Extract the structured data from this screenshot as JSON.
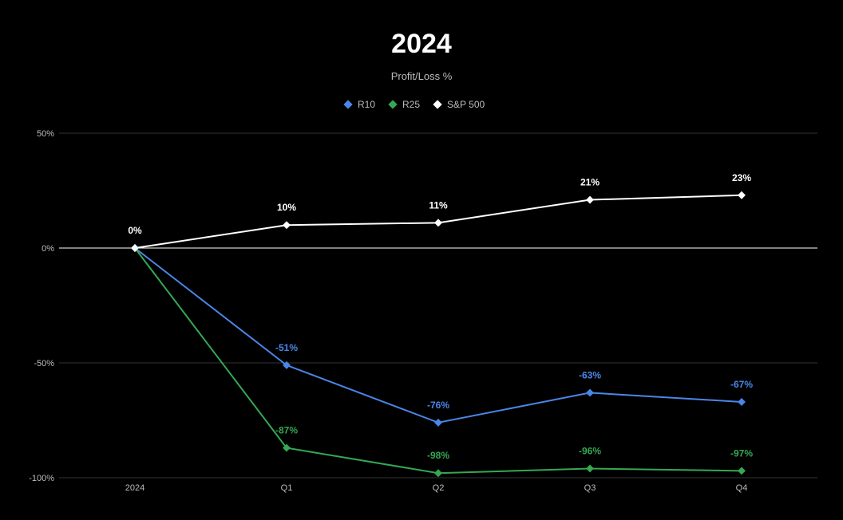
{
  "chart_data": {
    "type": "line",
    "title": "2024",
    "subtitle": "Profit/Loss %",
    "categories": [
      "2024",
      "Q1",
      "Q2",
      "Q3",
      "Q4"
    ],
    "yticks": [
      "50%",
      "0%",
      "-50%",
      "-100%"
    ],
    "ylim": [
      -100,
      50
    ],
    "grid": true,
    "legend_position": "top",
    "series": [
      {
        "name": "R10",
        "color": "#4a86e8",
        "values": [
          0,
          -51,
          -76,
          -63,
          -67
        ],
        "labels": [
          "",
          "-51%",
          "-76%",
          "-63%",
          "-67%"
        ]
      },
      {
        "name": "R25",
        "color": "#34a853",
        "values": [
          0,
          -87,
          -98,
          -96,
          -97
        ],
        "labels": [
          "",
          "-87%",
          "-98%",
          "-96%",
          "-97%"
        ]
      },
      {
        "name": "S&P 500",
        "color": "#ffffff",
        "values": [
          0,
          10,
          11,
          21,
          23
        ],
        "labels": [
          "0%",
          "10%",
          "11%",
          "21%",
          "23%"
        ]
      }
    ]
  }
}
